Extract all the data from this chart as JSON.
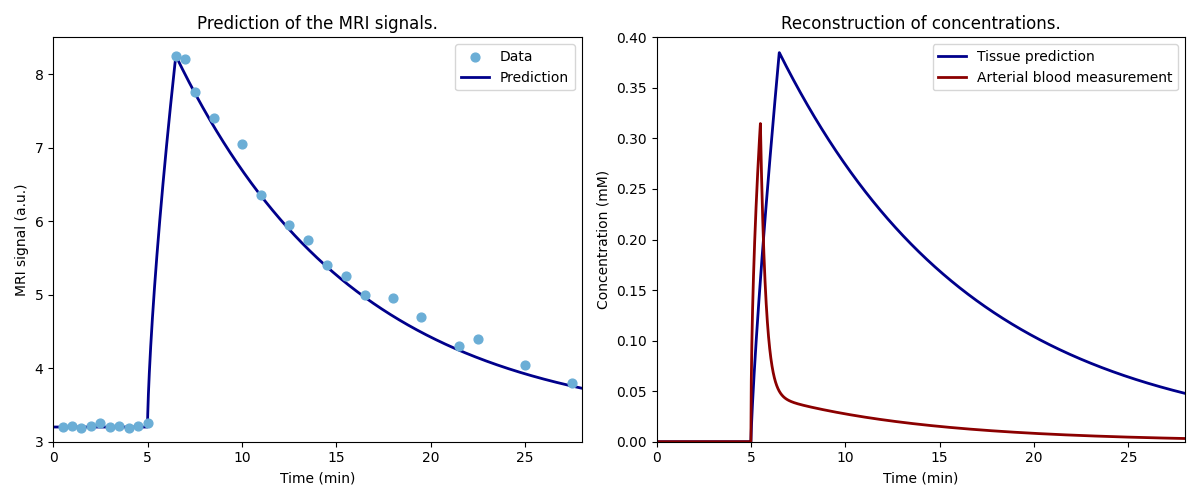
{
  "title_left": "Prediction of the MRI signals.",
  "title_right": "Reconstruction of concentrations.",
  "xlabel": "Time (min)",
  "ylabel_left": "MRI signal (a.u.)",
  "ylabel_right": "Concentration (mM)",
  "scatter_color": "#6baed6",
  "line_color_dark_blue": "#00008B",
  "line_color_dark_red": "#8B0000",
  "legend_left": [
    "Data",
    "Prediction"
  ],
  "legend_right": [
    "Tissue prediction",
    "Arterial blood measurement"
  ],
  "scatter_x": [
    0.5,
    1.0,
    1.5,
    2.0,
    2.5,
    3.0,
    3.5,
    4.0,
    4.5,
    5.0,
    6.5,
    7.0,
    7.5,
    8.5,
    10.0,
    11.0,
    12.5,
    13.5,
    14.5,
    15.5,
    16.5,
    18.0,
    19.5,
    21.5,
    22.5,
    25.0,
    27.5
  ],
  "scatter_y": [
    3.2,
    3.22,
    3.18,
    3.22,
    3.25,
    3.2,
    3.22,
    3.18,
    3.22,
    3.25,
    8.25,
    8.2,
    7.75,
    7.4,
    7.05,
    6.35,
    5.95,
    5.75,
    5.4,
    5.25,
    5.0,
    4.95,
    4.7,
    4.3,
    4.4,
    4.05,
    3.8
  ],
  "xlim_left": [
    0,
    28
  ],
  "ylim_left": [
    3.0,
    8.5
  ],
  "xlim_right": [
    0,
    28
  ],
  "ylim_right": [
    0.0,
    0.4
  ],
  "figsize": [
    12,
    5
  ],
  "dpi": 100
}
